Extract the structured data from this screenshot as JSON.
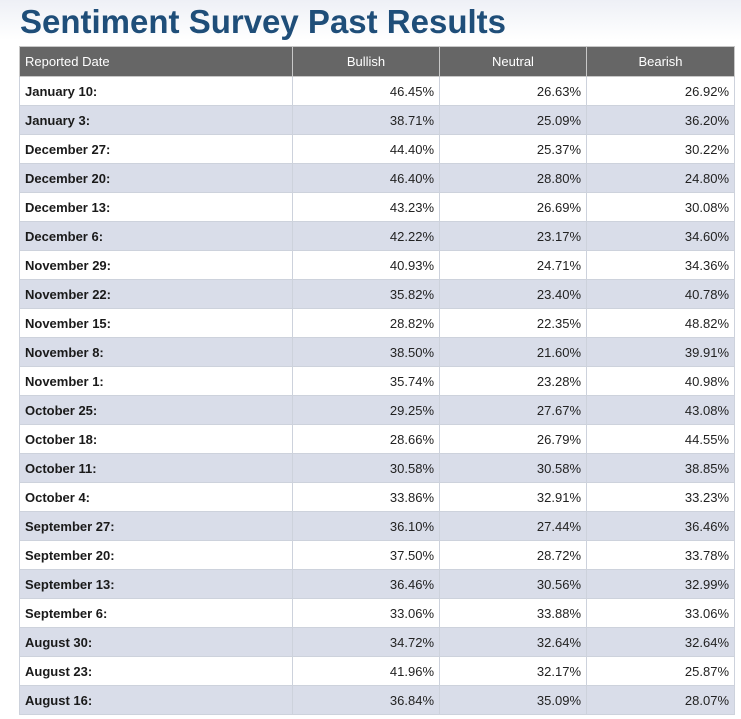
{
  "page": {
    "title": "Sentiment Survey Past Results"
  },
  "table": {
    "headers": [
      "Reported Date",
      "Bullish",
      "Neutral",
      "Bearish"
    ],
    "rows": [
      {
        "date": "January 10:",
        "bullish": "46.45%",
        "neutral": "26.63%",
        "bearish": "26.92%"
      },
      {
        "date": "January 3:",
        "bullish": "38.71%",
        "neutral": "25.09%",
        "bearish": "36.20%"
      },
      {
        "date": "December 27:",
        "bullish": "44.40%",
        "neutral": "25.37%",
        "bearish": "30.22%"
      },
      {
        "date": "December 20:",
        "bullish": "46.40%",
        "neutral": "28.80%",
        "bearish": "24.80%"
      },
      {
        "date": "December 13:",
        "bullish": "43.23%",
        "neutral": "26.69%",
        "bearish": "30.08%"
      },
      {
        "date": "December 6:",
        "bullish": "42.22%",
        "neutral": "23.17%",
        "bearish": "34.60%"
      },
      {
        "date": "November 29:",
        "bullish": "40.93%",
        "neutral": "24.71%",
        "bearish": "34.36%"
      },
      {
        "date": "November 22:",
        "bullish": "35.82%",
        "neutral": "23.40%",
        "bearish": "40.78%"
      },
      {
        "date": "November 15:",
        "bullish": "28.82%",
        "neutral": "22.35%",
        "bearish": "48.82%"
      },
      {
        "date": "November 8:",
        "bullish": "38.50%",
        "neutral": "21.60%",
        "bearish": "39.91%"
      },
      {
        "date": "November 1:",
        "bullish": "35.74%",
        "neutral": "23.28%",
        "bearish": "40.98%"
      },
      {
        "date": "October 25:",
        "bullish": "29.25%",
        "neutral": "27.67%",
        "bearish": "43.08%"
      },
      {
        "date": "October 18:",
        "bullish": "28.66%",
        "neutral": "26.79%",
        "bearish": "44.55%"
      },
      {
        "date": "October 11:",
        "bullish": "30.58%",
        "neutral": "30.58%",
        "bearish": "38.85%"
      },
      {
        "date": "October 4:",
        "bullish": "33.86%",
        "neutral": "32.91%",
        "bearish": "33.23%"
      },
      {
        "date": "September 27:",
        "bullish": "36.10%",
        "neutral": "27.44%",
        "bearish": "36.46%"
      },
      {
        "date": "September 20:",
        "bullish": "37.50%",
        "neutral": "28.72%",
        "bearish": "33.78%"
      },
      {
        "date": "September 13:",
        "bullish": "36.46%",
        "neutral": "30.56%",
        "bearish": "32.99%"
      },
      {
        "date": "September 6:",
        "bullish": "33.06%",
        "neutral": "33.88%",
        "bearish": "33.06%"
      },
      {
        "date": "August 30:",
        "bullish": "34.72%",
        "neutral": "32.64%",
        "bearish": "32.64%"
      },
      {
        "date": "August 23:",
        "bullish": "41.96%",
        "neutral": "32.17%",
        "bearish": "25.87%"
      },
      {
        "date": "August 16:",
        "bullish": "36.84%",
        "neutral": "35.09%",
        "bearish": "28.07%"
      }
    ]
  },
  "colors": {
    "title": "#1f4e79",
    "header_bg": "#666666",
    "alt_row_bg": "#d9dde9"
  }
}
